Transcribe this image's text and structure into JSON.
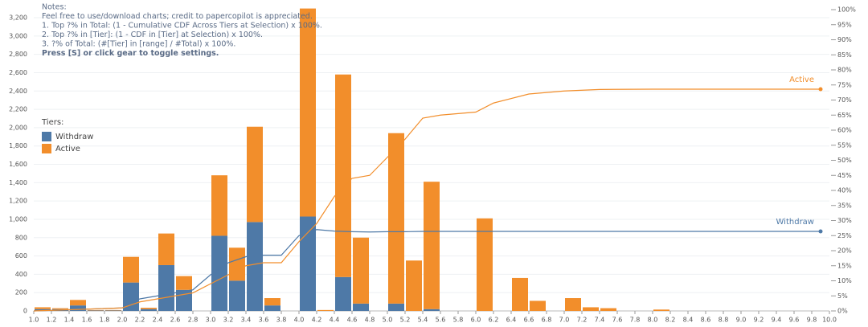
{
  "chart_data": {
    "type": "histogram",
    "notes": [
      "Notes:",
      "Feel free to use/download charts; credit to papercopilot is appreciated.",
      "1. Top ?% in Total: (1 - Cumulative CDF Across Tiers at Selection) x 100%.",
      "2. Top ?% in [Tier]: (1 - CDF in [Tier] at Selection) x 100%.",
      "3. ?% of Total: (#[Tier] in [range] / #Total) x 100%.",
      "Press [S] or click gear to toggle settings."
    ],
    "legend_title": "Tiers:",
    "bins": [
      1.0,
      1.2,
      1.4,
      1.6,
      1.8,
      2.0,
      2.2,
      2.4,
      2.6,
      2.8,
      3.0,
      3.2,
      3.4,
      3.6,
      3.8,
      4.0,
      4.2,
      4.4,
      4.6,
      4.8,
      5.0,
      5.2,
      5.4,
      5.6,
      5.8,
      6.0,
      6.2,
      6.4,
      6.6,
      6.8,
      7.0,
      7.2,
      7.4,
      7.6,
      7.8,
      8.0,
      8.2
    ],
    "series": [
      {
        "name": "Withdraw",
        "color": "#4e79a7",
        "values": [
          20,
          20,
          60,
          5,
          5,
          310,
          20,
          500,
          230,
          0,
          820,
          330,
          970,
          60,
          0,
          1030,
          0,
          370,
          80,
          0,
          80,
          0,
          20,
          0,
          0,
          0,
          0,
          0,
          0,
          0,
          0,
          0,
          0,
          0,
          0,
          0
        ],
        "cdf": [
          0,
          0.5,
          1,
          4,
          6,
          7,
          12,
          16,
          18,
          18.5,
          18.5,
          25,
          27,
          26.5,
          26.3,
          26.2,
          26.3,
          26.3,
          26.4,
          26.4,
          26.4,
          26.4,
          26.4,
          26.4,
          26.4,
          26.4,
          26.4
        ]
      },
      {
        "name": "Active",
        "color": "#f28e2b",
        "values": [
          20,
          10,
          60,
          5,
          5,
          280,
          15,
          345,
          150,
          0,
          660,
          360,
          1040,
          80,
          0,
          2270,
          10,
          2210,
          720,
          0,
          1860,
          550,
          1390,
          0,
          0,
          1010,
          0,
          360,
          110,
          0,
          140,
          40,
          30,
          0,
          0,
          15
        ],
        "cdf": [
          0,
          0.5,
          1,
          3,
          5,
          6,
          9,
          12,
          15,
          16,
          16,
          23,
          29,
          38,
          44,
          45,
          51,
          57,
          64,
          65,
          66,
          69,
          72,
          73,
          73.5,
          73.6,
          73.6
        ]
      }
    ],
    "cdf_x": [
      1.0,
      1.5,
      2.0,
      2.2,
      2.6,
      2.8,
      3.0,
      3.2,
      3.4,
      3.6,
      3.8,
      4.0,
      4.2,
      4.4,
      4.6,
      4.8,
      5.0,
      5.2,
      5.4,
      5.6,
      6.0,
      6.2,
      6.6,
      7.0,
      7.4,
      8.0,
      9.9
    ],
    "xlim": [
      1.0,
      10.0
    ],
    "xticks": [
      {
        "value": 1.0,
        "label": "1.0"
      },
      {
        "value": 1.2,
        "label": "1.2"
      },
      {
        "value": 1.4,
        "label": "1.4"
      },
      {
        "value": 1.6,
        "label": "1.6"
      },
      {
        "value": 1.8,
        "label": "1.8"
      },
      {
        "value": 2.0,
        "label": "2.0"
      },
      {
        "value": 2.2,
        "label": "2.2"
      },
      {
        "value": 2.4,
        "label": "2.4"
      },
      {
        "value": 2.6,
        "label": "2.6"
      },
      {
        "value": 2.8,
        "label": "2.8"
      },
      {
        "value": 3.0,
        "label": "3.0"
      },
      {
        "value": 3.2,
        "label": "3.2"
      },
      {
        "value": 3.4,
        "label": "3.4"
      },
      {
        "value": 3.6,
        "label": "3.6"
      },
      {
        "value": 3.8,
        "label": "3.8"
      },
      {
        "value": 4.0,
        "label": "4.0"
      },
      {
        "value": 4.2,
        "label": "4.2"
      },
      {
        "value": 4.4,
        "label": "4.4"
      },
      {
        "value": 4.6,
        "label": "4.6"
      },
      {
        "value": 4.8,
        "label": "4.8"
      },
      {
        "value": 5.0,
        "label": "5.0"
      },
      {
        "value": 5.2,
        "label": "5.2"
      },
      {
        "value": 5.4,
        "label": "5.4"
      },
      {
        "value": 5.6,
        "label": "5.6"
      },
      {
        "value": 5.8,
        "label": "5.8"
      },
      {
        "value": 6.0,
        "label": "6.0"
      },
      {
        "value": 6.2,
        "label": "6.2"
      },
      {
        "value": 6.4,
        "label": "6.4"
      },
      {
        "value": 6.6,
        "label": "6.6"
      },
      {
        "value": 6.8,
        "label": "6.8"
      },
      {
        "value": 7.0,
        "label": "7.0"
      },
      {
        "value": 7.2,
        "label": "7.2"
      },
      {
        "value": 7.4,
        "label": "7.4"
      },
      {
        "value": 7.6,
        "label": "7.6"
      },
      {
        "value": 7.8,
        "label": "7.8"
      },
      {
        "value": 8.0,
        "label": "8.0"
      },
      {
        "value": 8.2,
        "label": "8.2"
      },
      {
        "value": 8.4,
        "label": "8.4"
      },
      {
        "value": 8.6,
        "label": "8.6"
      },
      {
        "value": 8.8,
        "label": "8.8"
      },
      {
        "value": 9.0,
        "label": "9.0"
      },
      {
        "value": 9.2,
        "label": "9.2"
      },
      {
        "value": 9.4,
        "label": "9.4"
      },
      {
        "value": 9.6,
        "label": "9.6"
      },
      {
        "value": 9.8,
        "label": "9.8"
      },
      {
        "value": 10.0,
        "label": "10.0"
      }
    ],
    "ylim": [
      0,
      3200
    ],
    "yticks": [
      0,
      200,
      400,
      600,
      800,
      {
        "value": 1000,
        "label": "1,000"
      },
      {
        "value": 1200,
        "label": "1,200"
      },
      {
        "value": 1400,
        "label": "1,400"
      },
      {
        "value": 1600,
        "label": "1,600"
      },
      {
        "value": 1800,
        "label": "1,800"
      },
      {
        "value": 2000,
        "label": "2,000"
      },
      {
        "value": 2200,
        "label": "2,200"
      },
      {
        "value": 2400,
        "label": "2,400"
      },
      {
        "value": 2600,
        "label": "2,600"
      },
      {
        "value": 2800,
        "label": "2,800"
      },
      {
        "value": 3000,
        "label": "3,000"
      },
      {
        "value": 3200,
        "label": "3,200"
      }
    ],
    "y2lim": [
      0,
      100
    ],
    "y2ticks": [
      {
        "value": 0,
        "label": "0%"
      },
      {
        "value": 5,
        "label": "5%"
      },
      {
        "value": 10,
        "label": "10%"
      },
      {
        "value": 15,
        "label": "15%"
      },
      {
        "value": 20,
        "label": "20%"
      },
      {
        "value": 25,
        "label": "25%"
      },
      {
        "value": 30,
        "label": "30%"
      },
      {
        "value": 35,
        "label": "35%"
      },
      {
        "value": 40,
        "label": "40%"
      },
      {
        "value": 45,
        "label": "45%"
      },
      {
        "value": 50,
        "label": "50%"
      },
      {
        "value": 55,
        "label": "55%"
      },
      {
        "value": 60,
        "label": "60%"
      },
      {
        "value": 65,
        "label": "65%"
      },
      {
        "value": 70,
        "label": "70%"
      },
      {
        "value": 75,
        "label": "75%"
      },
      {
        "value": 80,
        "label": "80%"
      },
      {
        "value": 85,
        "label": "85%"
      },
      {
        "value": 90,
        "label": "90%"
      },
      {
        "value": 95,
        "label": "95%"
      },
      {
        "value": 100,
        "label": "100%"
      }
    ],
    "grid": true
  }
}
